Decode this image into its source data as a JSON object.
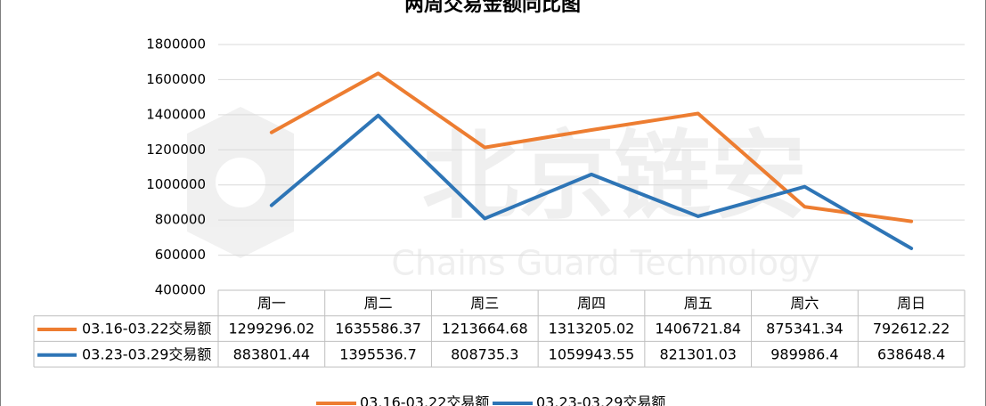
{
  "chart_data": {
    "type": "line",
    "title": "两周交易金额同比图",
    "watermark": [
      "北京链安",
      "Chains Guard Technology"
    ],
    "categories": [
      "周一",
      "周二",
      "周三",
      "周四",
      "周五",
      "周六",
      "周日"
    ],
    "series": [
      {
        "name": "03.16-03.22交易额",
        "color": "#ed7d31",
        "values": [
          1299296.02,
          1635586.37,
          1213664.68,
          1313205.02,
          1406721.84,
          875341.34,
          792612.22
        ]
      },
      {
        "name": "03.23-03.29交易额",
        "color": "#2e75b6",
        "values": [
          883801.44,
          1395536.7,
          808735.3,
          1059943.55,
          821301.03,
          989986.4,
          638648.4
        ]
      }
    ],
    "ylim": [
      400000,
      1800000
    ],
    "yticks": [
      400000,
      600000,
      800000,
      1000000,
      1200000,
      1400000,
      1600000,
      1800000
    ],
    "grid": true,
    "data_table": true,
    "legend": "bottom"
  }
}
